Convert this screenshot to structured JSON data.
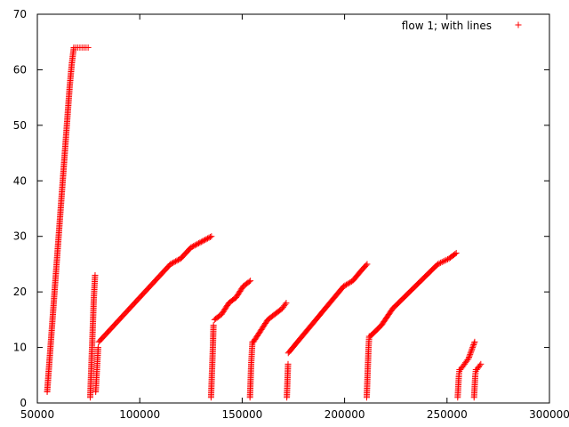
{
  "chart_data": {
    "type": "scatter",
    "title": "",
    "xlabel": "",
    "ylabel": "",
    "xlim": [
      50000,
      300000
    ],
    "ylim": [
      0,
      70
    ],
    "xticks": [
      50000,
      100000,
      150000,
      200000,
      250000,
      300000
    ],
    "yticks": [
      0,
      10,
      20,
      30,
      40,
      50,
      60,
      70
    ],
    "xtick_labels": [
      "50000",
      "100000",
      "150000",
      "200000",
      "250000",
      "300000"
    ],
    "ytick_labels": [
      "0",
      "10",
      "20",
      "30",
      "40",
      "50",
      "60",
      "70"
    ],
    "grid": false,
    "legend_position": "top-right",
    "series": [
      {
        "name": "flow 1; with lines",
        "color": "#ff0000",
        "marker": "plus",
        "segments": [
          {
            "x": [
              54800,
              55800,
              56800,
              57800,
              58800,
              59800,
              60800,
              61800,
              62800,
              63800,
              64800,
              65800,
              66800,
              67800
            ],
            "y": [
              2,
              7,
              12,
              17,
              22,
              27,
              32,
              37,
              42,
              47,
              52,
              57,
              61,
              64
            ]
          },
          {
            "x": [
              67800,
              68800,
              69800,
              70800,
              71800,
              72800,
              73800,
              74800
            ],
            "y": [
              64,
              64,
              64,
              64,
              64,
              64,
              64,
              64
            ]
          },
          {
            "x": [
              75800,
              76100,
              76400,
              76700,
              77000,
              77300,
              77600,
              77900,
              78200
            ],
            "y": [
              1,
              4,
              7,
              10,
              13,
              16,
              19,
              21,
              23
            ]
          },
          {
            "x": [
              78500,
              78800,
              79100,
              79400,
              79700
            ],
            "y": [
              2,
              4,
              6,
              8,
              10
            ]
          },
          {
            "x": [
              80000,
              85000,
              90000,
              95000,
              100000,
              105000,
              110000,
              115000,
              120000,
              125000,
              130000,
              135000
            ],
            "y": [
              11,
              13,
              15,
              17,
              19,
              21,
              23,
              25,
              26,
              28,
              29,
              30
            ]
          },
          {
            "x": [
              134800,
              135100,
              135400,
              135700,
              136000
            ],
            "y": [
              1,
              4,
              7,
              10,
              14
            ]
          },
          {
            "x": [
              136500,
              140000,
              143500,
              147000,
              150500,
              154000
            ],
            "y": [
              15,
              16,
              18,
              19,
              21,
              22
            ]
          },
          {
            "x": [
              153800,
              154100,
              154400,
              154700,
              155000
            ],
            "y": [
              1,
              4,
              7,
              9,
              11
            ]
          },
          {
            "x": [
              155500,
              159000,
              162500,
              166000,
              169500,
              171500
            ],
            "y": [
              11,
              13,
              15,
              16,
              17,
              18
            ]
          },
          {
            "x": [
              171800,
              172100,
              172400
            ],
            "y": [
              1,
              4,
              7
            ]
          },
          {
            "x": [
              172500,
              177000,
              181500,
              186000,
              190500,
              195000,
              199500,
              204000,
              208500,
              211000
            ],
            "y": [
              9,
              11,
              13,
              15,
              17,
              19,
              21,
              22,
              24,
              25
            ]
          },
          {
            "x": [
              210800,
              211100,
              211400,
              211700,
              212000
            ],
            "y": [
              1,
              4,
              7,
              10,
              12
            ]
          },
          {
            "x": [
              212500,
              218000,
              223500,
              229000,
              234500,
              240000,
              245500,
              251000,
              254500
            ],
            "y": [
              12,
              14,
              17,
              19,
              21,
              23,
              25,
              26,
              27
            ]
          },
          {
            "x": [
              255200,
              255500,
              255800,
              256100
            ],
            "y": [
              1,
              3,
              5,
              6
            ]
          },
          {
            "x": [
              256500,
              258500,
              260500,
              262500,
              263500
            ],
            "y": [
              6,
              7,
              8,
              10,
              11
            ]
          },
          {
            "x": [
              263200,
              263500,
              263800,
              264100
            ],
            "y": [
              1,
              3,
              5,
              6
            ]
          },
          {
            "x": [
              264500,
              265500,
              266500
            ],
            "y": [
              6,
              6.5,
              7
            ]
          }
        ]
      }
    ]
  }
}
